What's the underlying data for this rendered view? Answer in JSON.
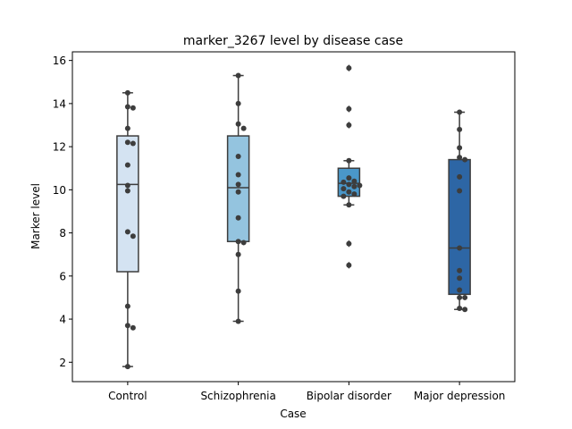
{
  "chart_data": {
    "type": "box",
    "title": "marker_3267 level by disease case",
    "xlabel": "Case",
    "ylabel": "Marker level",
    "ylim": [
      1.1,
      16.4
    ],
    "yticks": [
      2,
      4,
      6,
      8,
      10,
      12,
      14,
      16
    ],
    "grid": false,
    "categories": [
      "Control",
      "Schizophrenia",
      "Bipolar disorder",
      "Major depression"
    ],
    "colors": [
      "#d4e3f2",
      "#94c4df",
      "#4a97c9",
      "#2d66a5"
    ],
    "boxes": [
      {
        "whislo": 1.8,
        "q1": 6.2,
        "med": 10.25,
        "q3": 12.5,
        "whishi": 14.5,
        "fliers": []
      },
      {
        "whislo": 3.9,
        "q1": 7.6,
        "med": 10.1,
        "q3": 12.5,
        "whishi": 15.3,
        "fliers": []
      },
      {
        "whislo": 9.3,
        "q1": 9.7,
        "med": 10.3,
        "q3": 11.0,
        "whishi": 11.35,
        "fliers": [
          15.65,
          13.75,
          13.0,
          7.5,
          6.5
        ]
      },
      {
        "whislo": 4.45,
        "q1": 5.15,
        "med": 7.3,
        "q3": 11.4,
        "whishi": 13.6,
        "fliers": []
      }
    ],
    "points": [
      [
        14.5,
        13.85,
        13.8,
        12.85,
        12.2,
        12.15,
        11.15,
        10.2,
        9.95,
        8.05,
        7.85,
        4.6,
        3.7,
        3.6,
        1.8
      ],
      [
        15.3,
        14.0,
        13.05,
        12.85,
        11.55,
        10.7,
        10.25,
        9.9,
        8.7,
        7.6,
        7.55,
        7.0,
        5.3,
        3.9
      ],
      [
        15.65,
        13.75,
        13.0,
        11.35,
        10.55,
        10.4,
        10.35,
        10.25,
        10.2,
        10.15,
        10.05,
        9.9,
        9.8,
        9.7,
        9.3,
        7.5,
        6.5
      ],
      [
        13.6,
        12.8,
        11.95,
        11.5,
        11.4,
        10.6,
        9.95,
        7.3,
        6.25,
        5.9,
        5.35,
        5.0,
        5.0,
        4.5,
        4.45
      ]
    ]
  }
}
